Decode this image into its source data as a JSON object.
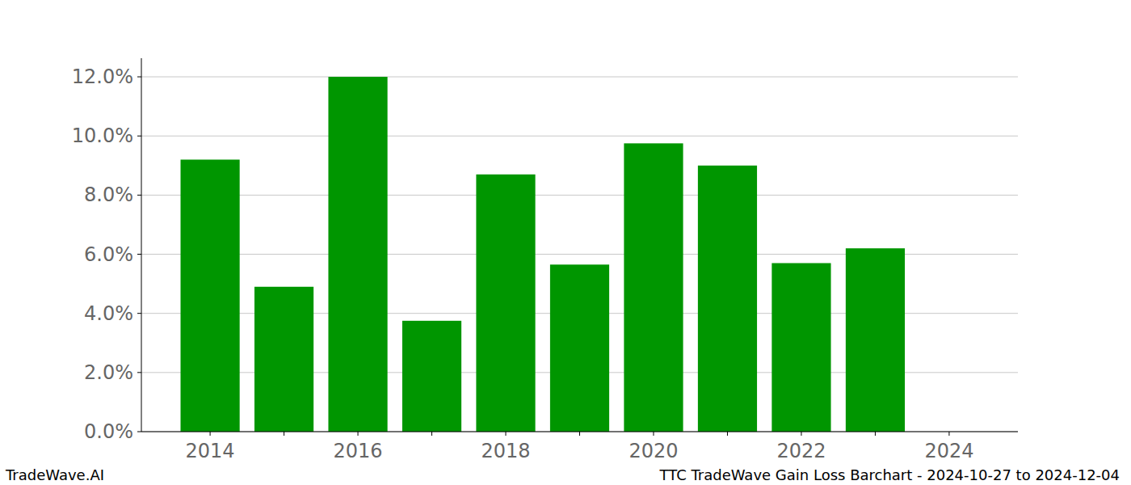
{
  "chart_data": {
    "type": "bar",
    "title": "TTC TradeWave Gain Loss Barchart - 2024-10-27 to 2024-12-04",
    "source": "TradeWave.AI",
    "categories": [
      "2014",
      null,
      "2016",
      null,
      "2018",
      null,
      "2020",
      null,
      "2022",
      null,
      "2024"
    ],
    "values": [
      9.2,
      4.9,
      12.0,
      3.75,
      8.7,
      5.65,
      9.75,
      9.0,
      5.7,
      6.2,
      null
    ],
    "color": "#009600",
    "ylim": [
      0,
      12.63
    ],
    "yticks": [
      {
        "value": 0,
        "label": "0.0%"
      },
      {
        "value": 2,
        "label": "2.0%"
      },
      {
        "value": 4,
        "label": "4.0%"
      },
      {
        "value": 6,
        "label": "6.0%"
      },
      {
        "value": 8,
        "label": "8.0%"
      },
      {
        "value": 10,
        "label": "10.0%"
      },
      {
        "value": 12,
        "label": "12.0%"
      }
    ],
    "grid": true
  }
}
